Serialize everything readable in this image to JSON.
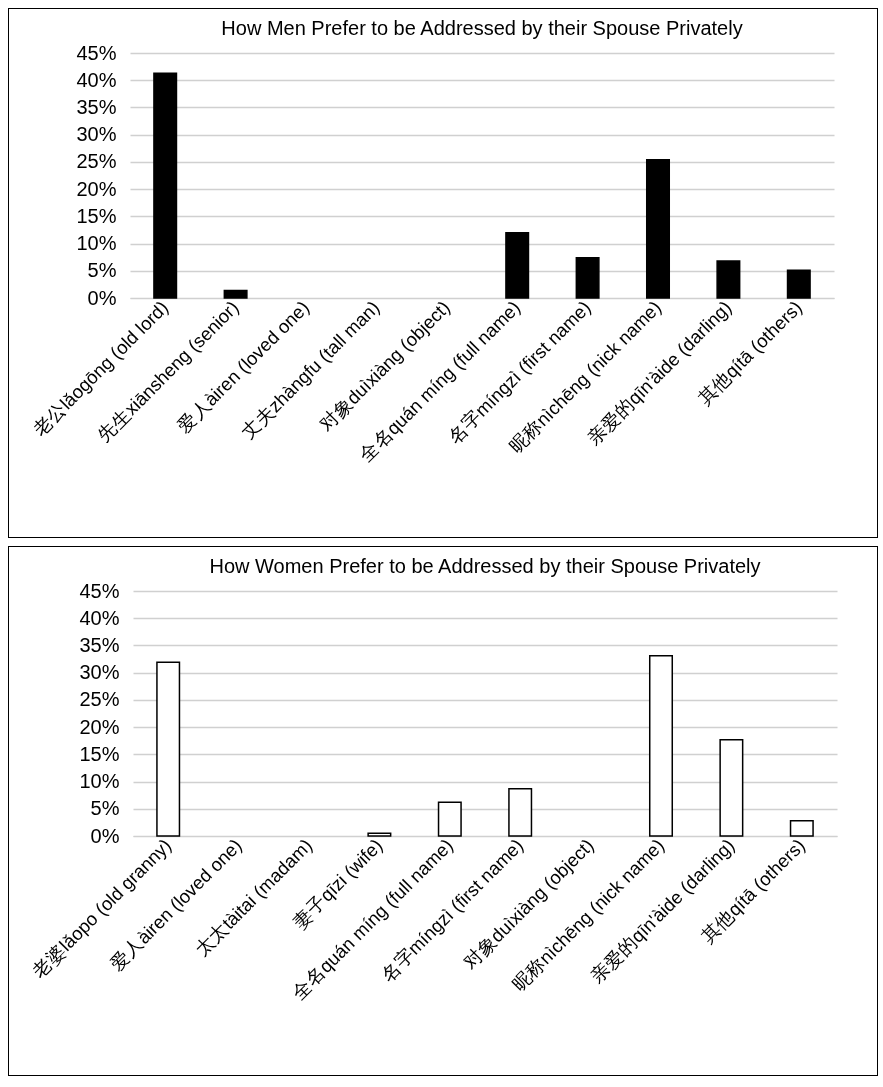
{
  "chart_data": [
    {
      "type": "bar",
      "title": "How Men Prefer to be Addressed by their Spouse Privately",
      "categories": [
        "老公lǎogōng (old lord)",
        "先生xiānsheng (senior)",
        "爱人àiren (loved one)",
        "丈夫zhàngfu (tall man)",
        "对象duìxiàng (object)",
        "全名quán míng (full name)",
        "名字míngzì (first name)",
        "昵称nìchēng (nick name)",
        "亲爱的qīn'àide (darling)",
        "其他qítā (others)"
      ],
      "values": [
        41.3,
        1.4,
        0,
        0,
        0,
        12.0,
        7.4,
        25.4,
        6.8,
        5.1
      ],
      "color": "#000000",
      "ylim": [
        0,
        45
      ],
      "yticks": [
        {
          "value": 0,
          "label": "0%"
        },
        {
          "value": 5,
          "label": "5%"
        },
        {
          "value": 10,
          "label": "10%"
        },
        {
          "value": 15,
          "label": "15%"
        },
        {
          "value": 20,
          "label": "20%"
        },
        {
          "value": 25,
          "label": "25%"
        },
        {
          "value": 30,
          "label": "30%"
        },
        {
          "value": 35,
          "label": "35%"
        },
        {
          "value": 40,
          "label": "40%"
        },
        {
          "value": 45,
          "label": "45%"
        }
      ],
      "grid": "y"
    },
    {
      "type": "bar",
      "title": "How Women Prefer to be Addressed by their Spouse Privately",
      "categories": [
        "老婆lǎopo (old granny)",
        "爱人àiren (loved one)",
        "太太tàitai (madam)",
        "妻子qīzi (wife)",
        "全名quán míng (full name)",
        "名字míngzì (first name)",
        "对象duìxiàng (object)",
        "昵称nìchēng (nick name)",
        "亲爱的qīn'àide (darling)",
        "其他qítā (others)"
      ],
      "values": [
        31.9,
        0,
        0,
        0.5,
        6.2,
        8.7,
        0,
        33.1,
        17.7,
        2.8
      ],
      "color": "#ffffff",
      "ylim": [
        0,
        45
      ],
      "yticks": [
        {
          "value": 0,
          "label": "0%"
        },
        {
          "value": 5,
          "label": "5%"
        },
        {
          "value": 10,
          "label": "10%"
        },
        {
          "value": 15,
          "label": "15%"
        },
        {
          "value": 20,
          "label": "20%"
        },
        {
          "value": 25,
          "label": "25%"
        },
        {
          "value": 30,
          "label": "30%"
        },
        {
          "value": 35,
          "label": "35%"
        },
        {
          "value": 40,
          "label": "40%"
        },
        {
          "value": 45,
          "label": "45%"
        }
      ],
      "grid": "y"
    }
  ]
}
